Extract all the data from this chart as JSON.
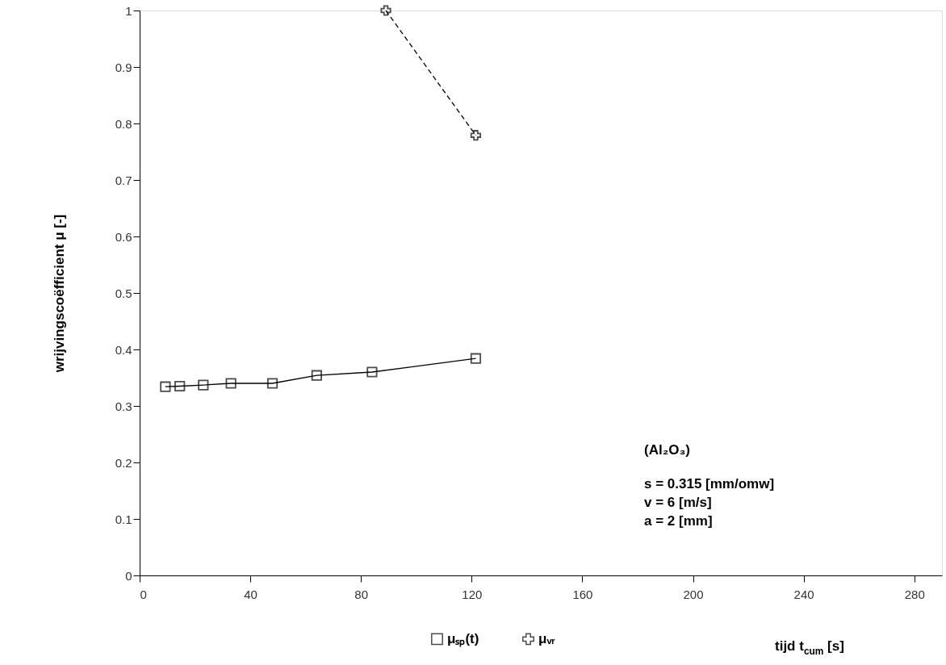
{
  "chart_data": {
    "type": "line",
    "xlabel": "tijd t$_{cum}$ [s]",
    "ylabel": "wrijvingscoëfficient μ [-]",
    "xlim": [
      0,
      290
    ],
    "xticks": [
      0,
      40,
      80,
      120,
      160,
      200,
      240,
      280
    ],
    "ylim": [
      0,
      1
    ],
    "yticks": [
      0,
      0.1,
      0.2,
      0.3,
      0.4,
      0.5,
      0.6,
      0.7,
      0.8,
      0.9,
      1
    ],
    "series": [
      {
        "name": "μₛₚ(t)",
        "color": "#000000",
        "marker": "square",
        "line_style": "solid",
        "x": [
          9.3,
          14.5,
          23,
          33,
          48,
          64,
          84,
          121.5
        ],
        "values": [
          0.334,
          0.335,
          0.337,
          0.34,
          0.34,
          0.354,
          0.36,
          0.384
        ]
      },
      {
        "name": "μᵥᵣ",
        "color": "#000000",
        "marker": "cross",
        "line_style": "dashed",
        "x": [
          89,
          121.5
        ],
        "values": [
          1.0,
          0.779
        ]
      }
    ],
    "annotations": [
      "(Al₂O₃)",
      "s = 0.315 [mm/omw]",
      "v = 6 [m/s]",
      "a = 2 [mm]"
    ],
    "legend": "bottom",
    "grid": false
  }
}
